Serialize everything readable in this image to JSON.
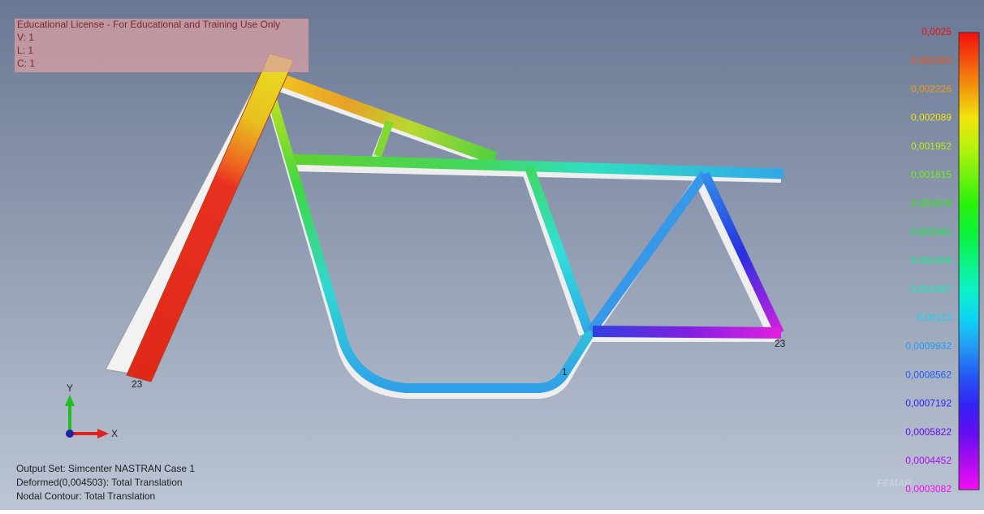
{
  "header": {
    "license": "Educational License - For Educational and Training Use Only",
    "lines": [
      "V: 1",
      "L: 1",
      "C: 1"
    ]
  },
  "legend": {
    "labels": [
      "0,0025",
      "0,002363",
      "0,002226",
      "0,002089",
      "0,001952",
      "0,001815",
      "0,001678",
      "0,001541",
      "0,001404",
      "0,001267",
      "0,00113",
      "0,0009932",
      "0,0008562",
      "0,0007192",
      "0,0005822",
      "0,0004452",
      "0,0003082"
    ]
  },
  "axes": {
    "y": "Y",
    "x": "X"
  },
  "node_labels": [
    "23",
    "23",
    "1"
  ],
  "footer": {
    "lines": [
      "Output Set: Simcenter NASTRAN Case 1",
      "Deformed(0,004503): Total Translation",
      "Nodal Contour: Total Translation"
    ]
  },
  "watermark": "FEMAP"
}
